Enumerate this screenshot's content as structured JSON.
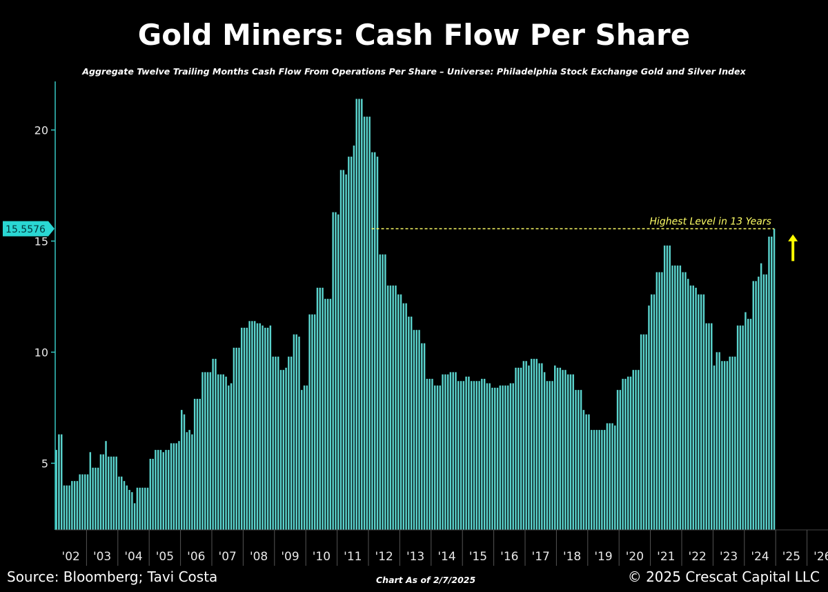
{
  "header": {
    "title": "Gold Miners: Cash Flow Per Share",
    "subtitle": "Aggregate Twelve Trailing Months Cash Flow From Operations Per Share – Universe: Philadelphia Stock Exchange Gold and Silver Index"
  },
  "footer": {
    "source": "Source: Bloomberg; Tavi Costa",
    "as_of": "Chart As of 2/7/2025",
    "copyright": "© 2025 Crescat Capital LLC"
  },
  "colors": {
    "background": "#000000",
    "bar": "#5ad3cd",
    "axis": "#37c8c4",
    "annotation": "#ffff66",
    "arrow": "#ffff00",
    "label_box": "#2ad7d3"
  },
  "chart_data": {
    "type": "bar",
    "title": "Gold Miners: Cash Flow Per Share",
    "xlabel": "",
    "ylabel": "",
    "ylim": [
      2.0,
      22.3
    ],
    "yticks": [
      5,
      10,
      15,
      20
    ],
    "x_start": "2002-01",
    "xlim_years": [
      2002,
      2026.5
    ],
    "year_tick_labels": [
      "'02",
      "'03",
      "'04",
      "'05",
      "'06",
      "'07",
      "'08",
      "'09",
      "'10",
      "'11",
      "'12",
      "'13",
      "'14",
      "'15",
      "'16",
      "'17",
      "'18",
      "'19",
      "'20",
      "'21",
      "'22",
      "'23",
      "'24",
      "'25",
      "'26"
    ],
    "last_value_label": "15.5576",
    "annotation": {
      "text": "Highest Level in 13 Years",
      "from_year": 2012.1,
      "to_year": 2024.95,
      "value": 15.5576,
      "arrow_year": 2025.55,
      "arrow_from_value": 14.1,
      "arrow_to_value": 15.3
    },
    "grid": false,
    "legend": "none",
    "values": [
      5.6,
      6.3,
      6.3,
      4.0,
      4.0,
      4.0,
      4.2,
      4.2,
      4.2,
      4.5,
      4.5,
      4.5,
      4.5,
      5.5,
      4.8,
      4.8,
      4.8,
      5.4,
      5.4,
      6.0,
      5.3,
      5.3,
      5.3,
      5.3,
      4.4,
      4.4,
      4.2,
      4.0,
      3.8,
      3.7,
      3.2,
      3.9,
      3.9,
      3.9,
      3.9,
      3.9,
      5.2,
      5.2,
      5.6,
      5.6,
      5.6,
      5.5,
      5.6,
      5.6,
      5.9,
      5.9,
      5.9,
      6.0,
      7.4,
      7.2,
      6.4,
      6.5,
      6.3,
      7.9,
      7.9,
      7.9,
      9.1,
      9.1,
      9.1,
      9.1,
      9.7,
      9.7,
      9.0,
      9.0,
      9.0,
      8.9,
      8.5,
      8.6,
      10.2,
      10.2,
      10.2,
      11.1,
      11.1,
      11.1,
      11.4,
      11.4,
      11.4,
      11.3,
      11.3,
      11.2,
      11.1,
      11.1,
      11.2,
      9.8,
      9.8,
      9.8,
      9.2,
      9.2,
      9.3,
      9.8,
      9.8,
      10.8,
      10.8,
      10.7,
      8.3,
      8.5,
      8.5,
      11.7,
      11.7,
      11.7,
      12.9,
      12.9,
      12.9,
      12.4,
      12.4,
      12.4,
      16.3,
      16.3,
      16.2,
      18.2,
      18.2,
      18.0,
      18.8,
      18.8,
      19.3,
      21.4,
      21.4,
      21.4,
      20.6,
      20.6,
      20.6,
      19.0,
      19.0,
      18.8,
      14.4,
      14.4,
      14.4,
      13.0,
      13.0,
      13.0,
      13.0,
      12.6,
      12.6,
      12.2,
      12.2,
      11.6,
      11.6,
      11.0,
      11.0,
      11.0,
      10.4,
      10.4,
      8.8,
      8.8,
      8.8,
      8.5,
      8.5,
      8.5,
      9.0,
      9.0,
      9.0,
      9.1,
      9.1,
      9.1,
      8.7,
      8.7,
      8.7,
      8.9,
      8.9,
      8.7,
      8.7,
      8.7,
      8.7,
      8.8,
      8.8,
      8.6,
      8.6,
      8.4,
      8.4,
      8.4,
      8.5,
      8.5,
      8.5,
      8.5,
      8.6,
      8.6,
      9.3,
      9.3,
      9.3,
      9.6,
      9.6,
      9.4,
      9.7,
      9.7,
      9.7,
      9.5,
      9.5,
      9.1,
      8.7,
      8.7,
      8.7,
      9.4,
      9.3,
      9.3,
      9.2,
      9.2,
      9.0,
      9.0,
      9.0,
      8.3,
      8.3,
      8.3,
      7.4,
      7.2,
      7.2,
      6.5,
      6.5,
      6.5,
      6.5,
      6.5,
      6.5,
      6.8,
      6.8,
      6.8,
      6.7,
      8.3,
      8.3,
      8.8,
      8.8,
      8.9,
      8.9,
      9.2,
      9.2,
      9.2,
      10.8,
      10.8,
      10.8,
      12.1,
      12.6,
      12.6,
      13.6,
      13.6,
      13.6,
      14.8,
      14.8,
      14.8,
      13.9,
      13.9,
      13.9,
      13.9,
      13.6,
      13.6,
      13.3,
      13.0,
      13.0,
      12.9,
      12.6,
      12.6,
      12.6,
      11.3,
      11.3,
      11.3,
      9.4,
      10.0,
      10.0,
      9.6,
      9.6,
      9.6,
      9.8,
      9.8,
      9.8,
      11.2,
      11.2,
      11.2,
      11.8,
      11.5,
      11.5,
      13.2,
      13.2,
      13.4,
      14.0,
      13.5,
      13.5,
      15.2,
      15.2,
      15.5576
    ]
  }
}
